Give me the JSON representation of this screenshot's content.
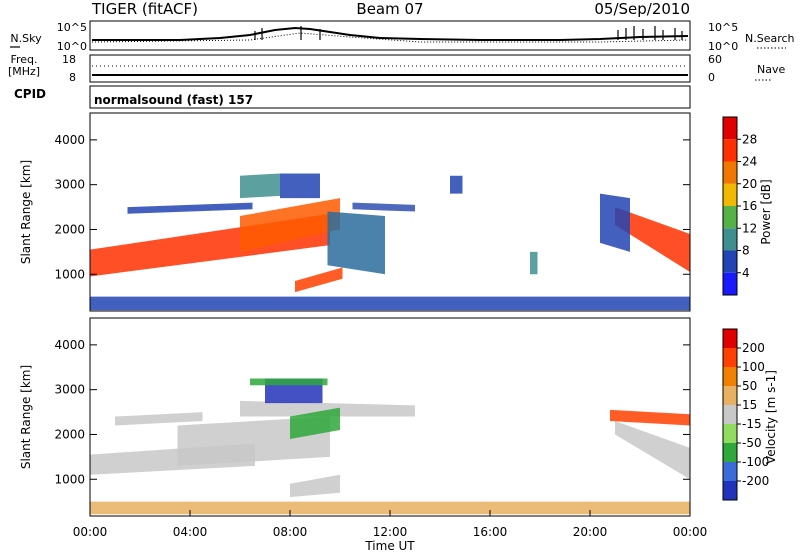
{
  "header": {
    "radar": "TIGER (fitACF)",
    "beam": "Beam 07",
    "date": "05/Sep/2010"
  },
  "summary_panels": {
    "nsky": {
      "label": "N.Sky",
      "scale_top": "10^5",
      "scale_bottom": "10^0"
    },
    "nsearch": {
      "label": "N.Search",
      "scale_top": "10^5",
      "scale_bottom": "10^0"
    },
    "freq": {
      "label_line1": "Freq.",
      "label_line2": "[MHz]",
      "tick_top": "18",
      "tick_bottom": "8"
    },
    "nave": {
      "label": "Nave",
      "tick_top": "60",
      "tick_bottom": "0"
    },
    "cpid": {
      "label": "CPID",
      "value": "normalsound (fast) 157"
    }
  },
  "chart_data": [
    {
      "type": "heatmap",
      "name": "power",
      "ylabel": "Slant Range [km]",
      "yticks": [
        1000,
        2000,
        3000,
        4000
      ],
      "ylim": [
        180,
        4600
      ],
      "colorbar": {
        "label": "Power [dB]",
        "tick_labels": [
          "4",
          "8",
          "12",
          "16",
          "20",
          "24",
          "28"
        ],
        "colors": [
          "#1a1aff",
          "#2244b4",
          "#3f8f8f",
          "#55b148",
          "#f0b800",
          "#f07800",
          "#ff3000",
          "#e00000"
        ]
      },
      "bands": [
        {
          "x0": 0.0,
          "x1": 9.6,
          "r0_start": 950,
          "r0_end": 1650,
          "r1_start": 1550,
          "r1_end": 2350,
          "color": "#ff3000"
        },
        {
          "x0": 6.0,
          "x1": 10.0,
          "r0_start": 1500,
          "r0_end": 2000,
          "r1_start": 2300,
          "r1_end": 2700,
          "color": "#ff5a00"
        },
        {
          "x0": 6.0,
          "x1": 7.6,
          "r0_start": 2700,
          "r0_end": 2750,
          "r1_start": 3200,
          "r1_end": 3250,
          "color": "#3f8f8f"
        },
        {
          "x0": 7.6,
          "x1": 9.2,
          "r0_start": 2700,
          "r0_end": 2700,
          "r1_start": 3250,
          "r1_end": 3250,
          "color": "#2244b4"
        },
        {
          "x0": 8.2,
          "x1": 10.1,
          "r0_start": 600,
          "r0_end": 900,
          "r1_start": 850,
          "r1_end": 1150,
          "color": "#ff4000"
        },
        {
          "x0": 1.5,
          "x1": 6.5,
          "r0_start": 2350,
          "r0_end": 2450,
          "r1_start": 2500,
          "r1_end": 2600,
          "color": "#2244b4"
        },
        {
          "x0": 9.5,
          "x1": 11.8,
          "r0_start": 1200,
          "r0_end": 1000,
          "r1_start": 2400,
          "r1_end": 2300,
          "color": "#2c6c9c"
        },
        {
          "x0": 10.5,
          "x1": 13.0,
          "r0_start": 2450,
          "r0_end": 2400,
          "r1_start": 2600,
          "r1_end": 2550,
          "color": "#3050b0"
        },
        {
          "x0": 14.4,
          "x1": 14.9,
          "r0_start": 2800,
          "r0_end": 2800,
          "r1_start": 3200,
          "r1_end": 3200,
          "color": "#2244b4"
        },
        {
          "x0": 17.6,
          "x1": 17.9,
          "r0_start": 1000,
          "r0_end": 1000,
          "r1_start": 1500,
          "r1_end": 1500,
          "color": "#3f8f8f"
        },
        {
          "x0": 21.0,
          "x1": 24.0,
          "r0_start": 2100,
          "r0_end": 1050,
          "r1_start": 2500,
          "r1_end": 1900,
          "color": "#ff3000"
        },
        {
          "x0": 20.4,
          "x1": 21.6,
          "r0_start": 1700,
          "r0_end": 1500,
          "r1_start": 2800,
          "r1_end": 2700,
          "color": "#2244b4"
        },
        {
          "x0": 0.0,
          "x1": 24.0,
          "r0_start": 200,
          "r0_end": 200,
          "r1_start": 500,
          "r1_end": 500,
          "color": "#2244b4"
        }
      ]
    },
    {
      "type": "heatmap",
      "name": "velocity",
      "ylabel": "Slant Range [km]",
      "xlabel": "Time UT",
      "xticks": [
        "00:00",
        "04:00",
        "08:00",
        "12:00",
        "16:00",
        "20:00",
        "00:00"
      ],
      "yticks": [
        1000,
        2000,
        3000,
        4000
      ],
      "ylim": [
        180,
        4600
      ],
      "xlim": [
        0,
        24
      ],
      "colorbar": {
        "label": "Velocity [m s-1]",
        "tick_labels": [
          "200",
          "100",
          "50",
          "15",
          "-15",
          "-50",
          "-100",
          "-200"
        ],
        "colors": [
          "#2233bb",
          "#3a6bd6",
          "#2ea83a",
          "#8fdc5e",
          "#c8c8c8",
          "#e8b060",
          "#f08000",
          "#ff4000",
          "#e00000"
        ]
      },
      "bands": [
        {
          "x0": 0.0,
          "x1": 6.6,
          "r0_start": 1100,
          "r0_end": 1300,
          "r1_start": 1550,
          "r1_end": 1800,
          "color": "#c8c8c8"
        },
        {
          "x0": 3.5,
          "x1": 9.6,
          "r0_start": 1300,
          "r0_end": 1500,
          "r1_start": 2200,
          "r1_end": 2400,
          "color": "#c8c8c8"
        },
        {
          "x0": 1.0,
          "x1": 4.5,
          "r0_start": 2200,
          "r0_end": 2300,
          "r1_start": 2400,
          "r1_end": 2500,
          "color": "#c8c8c8"
        },
        {
          "x0": 6.0,
          "x1": 13.0,
          "r0_start": 2400,
          "r0_end": 2400,
          "r1_start": 2750,
          "r1_end": 2650,
          "color": "#c8c8c8"
        },
        {
          "x0": 7.0,
          "x1": 9.3,
          "r0_start": 2700,
          "r0_end": 2700,
          "r1_start": 3250,
          "r1_end": 3250,
          "color": "#2233bb"
        },
        {
          "x0": 8.0,
          "x1": 10.0,
          "r0_start": 1900,
          "r0_end": 2100,
          "r1_start": 2400,
          "r1_end": 2600,
          "color": "#2ea83a"
        },
        {
          "x0": 8.0,
          "x1": 10.0,
          "r0_start": 600,
          "r0_end": 700,
          "r1_start": 900,
          "r1_end": 1100,
          "color": "#c8c8c8"
        },
        {
          "x0": 6.4,
          "x1": 9.5,
          "r0_start": 3100,
          "r0_end": 3100,
          "r1_start": 3250,
          "r1_end": 3250,
          "color": "#2ea83a"
        },
        {
          "x0": 21.0,
          "x1": 24.0,
          "r0_start": 2000,
          "r0_end": 1000,
          "r1_start": 2300,
          "r1_end": 1700,
          "color": "#c8c8c8"
        },
        {
          "x0": 20.8,
          "x1": 24.0,
          "r0_start": 2300,
          "r0_end": 2200,
          "r1_start": 2550,
          "r1_end": 2450,
          "color": "#ff4000"
        },
        {
          "x0": 0.0,
          "x1": 24.0,
          "r0_start": 220,
          "r0_end": 220,
          "r1_start": 500,
          "r1_end": 500,
          "color": "#e8b060"
        }
      ]
    }
  ]
}
